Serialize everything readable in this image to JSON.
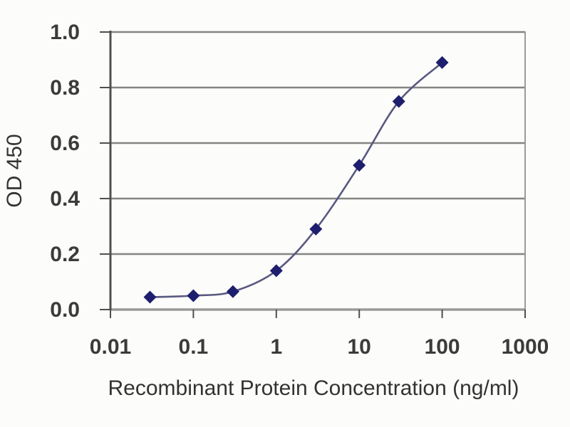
{
  "chart_data": {
    "type": "line",
    "title": "",
    "xlabel": "Recombinant Protein Concentration (ng/ml)",
    "ylabel": "OD 450",
    "x_scale": "log",
    "xlim": [
      0.01,
      1000
    ],
    "ylim": [
      0.0,
      1.0
    ],
    "x_ticks": [
      "0.01",
      "0.1",
      "1",
      "10",
      "100",
      "1000"
    ],
    "y_ticks": [
      "0.0",
      "0.2",
      "0.4",
      "0.6",
      "0.8",
      "1.0"
    ],
    "grid": "horizontal-only",
    "legend": "none",
    "marker": "diamond",
    "series_name": "OD 450",
    "x": [
      0.03,
      0.1,
      0.3,
      1,
      3,
      10,
      30,
      100
    ],
    "values": [
      0.045,
      0.05,
      0.065,
      0.14,
      0.29,
      0.52,
      0.75,
      0.89
    ],
    "colors": {
      "line": "#585881",
      "marker": "#1e1e6e",
      "grid": "#848484",
      "axis": "#4f4f4f",
      "frame": "#9a9a9a",
      "text": "#333333",
      "background": "#fcfcfa"
    }
  }
}
